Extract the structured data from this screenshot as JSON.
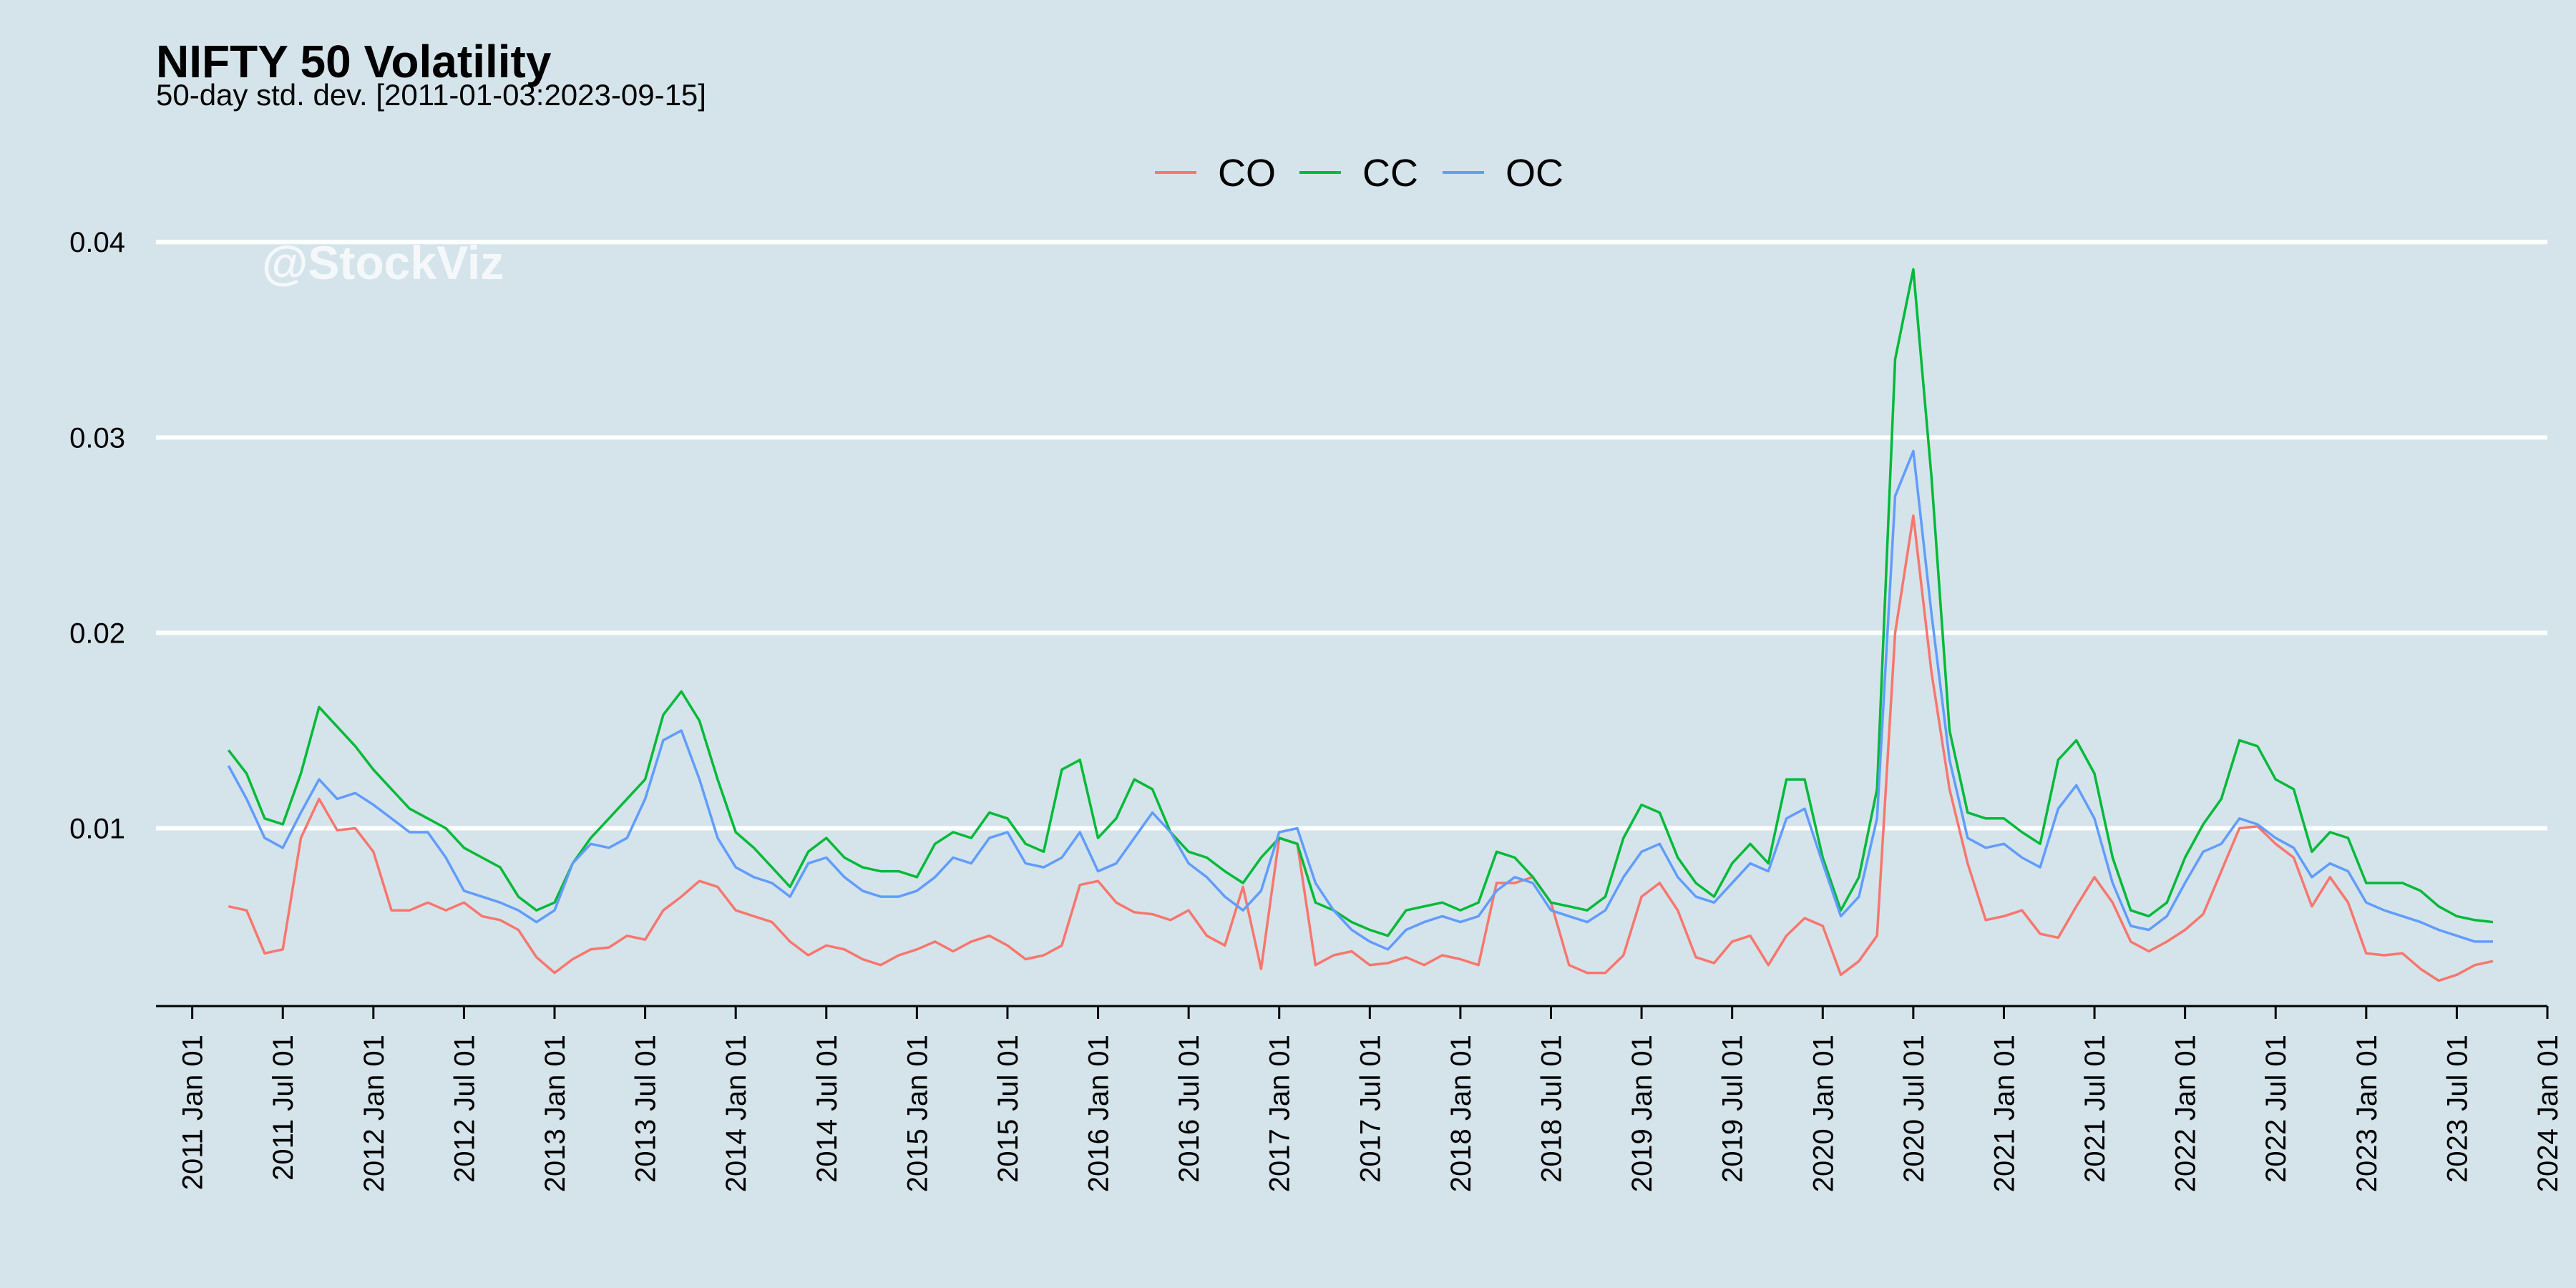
{
  "chart_data": {
    "type": "line",
    "title": "NIFTY 50 Volatility",
    "subtitle": "50-day std. dev. [2011-01-03:2023-09-15]",
    "watermark": "@StockViz",
    "xlabel": "",
    "ylabel": "",
    "xlim": [
      2010.8,
      2024.0
    ],
    "ylim": [
      0.0009,
      0.0414
    ],
    "y_ticks": [
      0.01,
      0.02,
      0.03,
      0.04
    ],
    "y_tick_labels": [
      "0.01",
      "0.02",
      "0.03",
      "0.04"
    ],
    "x_ticks": [
      2011.0,
      2011.5,
      2012.0,
      2012.5,
      2013.0,
      2013.5,
      2014.0,
      2014.5,
      2015.0,
      2015.5,
      2016.0,
      2016.5,
      2017.0,
      2017.5,
      2018.0,
      2018.5,
      2019.0,
      2019.5,
      2020.0,
      2020.5,
      2021.0,
      2021.5,
      2022.0,
      2022.5,
      2023.0,
      2023.5,
      2024.0
    ],
    "x_tick_labels": [
      "2011 Jan 01",
      "2011 Jul 01",
      "2012 Jan 01",
      "2012 Jul 01",
      "2013 Jan 01",
      "2013 Jul 01",
      "2014 Jan 01",
      "2014 Jul 01",
      "2015 Jan 01",
      "2015 Jul 01",
      "2016 Jan 01",
      "2016 Jul 01",
      "2017 Jan 01",
      "2017 Jul 01",
      "2018 Jan 01",
      "2018 Jul 01",
      "2019 Jan 01",
      "2019 Jul 01",
      "2020 Jan 01",
      "2020 Jul 01",
      "2021 Jan 01",
      "2021 Jul 01",
      "2022 Jan 01",
      "2022 Jul 01",
      "2023 Jan 01",
      "2023 Jul 01",
      "2024 Jan 01"
    ],
    "grid": "horizontal",
    "legend_position": "top",
    "series": [
      {
        "name": "CO",
        "color": "#f8766d",
        "x": [
          2011.2,
          2011.3,
          2011.4,
          2011.5,
          2011.6,
          2011.7,
          2011.8,
          2011.9,
          2012.0,
          2012.1,
          2012.2,
          2012.3,
          2012.4,
          2012.5,
          2012.6,
          2012.7,
          2012.8,
          2012.9,
          2013.0,
          2013.1,
          2013.2,
          2013.3,
          2013.4,
          2013.5,
          2013.6,
          2013.7,
          2013.8,
          2013.9,
          2014.0,
          2014.1,
          2014.2,
          2014.3,
          2014.4,
          2014.5,
          2014.6,
          2014.7,
          2014.8,
          2014.9,
          2015.0,
          2015.1,
          2015.2,
          2015.3,
          2015.4,
          2015.5,
          2015.6,
          2015.7,
          2015.8,
          2015.9,
          2016.0,
          2016.1,
          2016.2,
          2016.3,
          2016.4,
          2016.5,
          2016.6,
          2016.7,
          2016.8,
          2016.9,
          2017.0,
          2017.1,
          2017.2,
          2017.3,
          2017.4,
          2017.5,
          2017.6,
          2017.7,
          2017.8,
          2017.9,
          2018.0,
          2018.1,
          2018.2,
          2018.3,
          2018.4,
          2018.5,
          2018.6,
          2018.7,
          2018.8,
          2018.9,
          2019.0,
          2019.1,
          2019.2,
          2019.3,
          2019.4,
          2019.5,
          2019.6,
          2019.7,
          2019.8,
          2019.9,
          2020.0,
          2020.1,
          2020.2,
          2020.3,
          2020.4,
          2020.5,
          2020.6,
          2020.7,
          2020.8,
          2020.9,
          2021.0,
          2021.1,
          2021.2,
          2021.3,
          2021.4,
          2021.5,
          2021.6,
          2021.7,
          2021.8,
          2021.9,
          2022.0,
          2022.1,
          2022.2,
          2022.3,
          2022.4,
          2022.5,
          2022.6,
          2022.7,
          2022.8,
          2022.9,
          2023.0,
          2023.1,
          2023.2,
          2023.3,
          2023.4,
          2023.5,
          2023.6,
          2023.7
        ],
        "values": [
          0.006,
          0.0058,
          0.0036,
          0.0038,
          0.0095,
          0.0115,
          0.0099,
          0.01,
          0.0088,
          0.0058,
          0.0058,
          0.0062,
          0.0058,
          0.0062,
          0.0055,
          0.0053,
          0.0048,
          0.0034,
          0.0026,
          0.0033,
          0.0038,
          0.0039,
          0.0045,
          0.0043,
          0.0058,
          0.0065,
          0.0073,
          0.007,
          0.0058,
          0.0055,
          0.0052,
          0.0042,
          0.0035,
          0.004,
          0.0038,
          0.0033,
          0.003,
          0.0035,
          0.0038,
          0.0042,
          0.0037,
          0.0042,
          0.0045,
          0.004,
          0.0033,
          0.0035,
          0.004,
          0.0071,
          0.0073,
          0.0062,
          0.0057,
          0.0056,
          0.0053,
          0.0058,
          0.0045,
          0.004,
          0.007,
          0.0028,
          0.0095,
          0.0092,
          0.003,
          0.0035,
          0.0037,
          0.003,
          0.0031,
          0.0034,
          0.003,
          0.0035,
          0.0033,
          0.003,
          0.0072,
          0.0072,
          0.0075,
          0.0062,
          0.003,
          0.0026,
          0.0026,
          0.0035,
          0.0065,
          0.0072,
          0.0058,
          0.0034,
          0.0031,
          0.0042,
          0.0045,
          0.003,
          0.0045,
          0.0054,
          0.005,
          0.0025,
          0.0032,
          0.0045,
          0.02,
          0.026,
          0.018,
          0.012,
          0.0082,
          0.0053,
          0.0055,
          0.0058,
          0.0046,
          0.0044,
          0.006,
          0.0075,
          0.0062,
          0.0042,
          0.0037,
          0.0042,
          0.0048,
          0.0056,
          0.0078,
          0.01,
          0.0101,
          0.0092,
          0.0085,
          0.006,
          0.0075,
          0.0062,
          0.0036,
          0.0035,
          0.0036,
          0.0028,
          0.0022,
          0.0025,
          0.003,
          0.0032
        ]
      },
      {
        "name": "CC",
        "color": "#00ba38",
        "x": [
          2011.2,
          2011.3,
          2011.4,
          2011.5,
          2011.6,
          2011.7,
          2011.8,
          2011.9,
          2012.0,
          2012.1,
          2012.2,
          2012.3,
          2012.4,
          2012.5,
          2012.6,
          2012.7,
          2012.8,
          2012.9,
          2013.0,
          2013.1,
          2013.2,
          2013.3,
          2013.4,
          2013.5,
          2013.6,
          2013.7,
          2013.8,
          2013.9,
          2014.0,
          2014.1,
          2014.2,
          2014.3,
          2014.4,
          2014.5,
          2014.6,
          2014.7,
          2014.8,
          2014.9,
          2015.0,
          2015.1,
          2015.2,
          2015.3,
          2015.4,
          2015.5,
          2015.6,
          2015.7,
          2015.8,
          2015.9,
          2016.0,
          2016.1,
          2016.2,
          2016.3,
          2016.4,
          2016.5,
          2016.6,
          2016.7,
          2016.8,
          2016.9,
          2017.0,
          2017.1,
          2017.2,
          2017.3,
          2017.4,
          2017.5,
          2017.6,
          2017.7,
          2017.8,
          2017.9,
          2018.0,
          2018.1,
          2018.2,
          2018.3,
          2018.4,
          2018.5,
          2018.6,
          2018.7,
          2018.8,
          2018.9,
          2019.0,
          2019.1,
          2019.2,
          2019.3,
          2019.4,
          2019.5,
          2019.6,
          2019.7,
          2019.8,
          2019.9,
          2020.0,
          2020.1,
          2020.2,
          2020.3,
          2020.4,
          2020.5,
          2020.6,
          2020.7,
          2020.8,
          2020.9,
          2021.0,
          2021.1,
          2021.2,
          2021.3,
          2021.4,
          2021.5,
          2021.6,
          2021.7,
          2021.8,
          2021.9,
          2022.0,
          2022.1,
          2022.2,
          2022.3,
          2022.4,
          2022.5,
          2022.6,
          2022.7,
          2022.8,
          2022.9,
          2023.0,
          2023.1,
          2023.2,
          2023.3,
          2023.4,
          2023.5,
          2023.6,
          2023.7
        ],
        "values": [
          0.014,
          0.0128,
          0.0105,
          0.0102,
          0.0128,
          0.0162,
          0.0152,
          0.0142,
          0.013,
          0.012,
          0.011,
          0.0105,
          0.01,
          0.009,
          0.0085,
          0.008,
          0.0065,
          0.0058,
          0.0062,
          0.0082,
          0.0095,
          0.0105,
          0.0115,
          0.0125,
          0.0158,
          0.017,
          0.0155,
          0.0125,
          0.0098,
          0.009,
          0.008,
          0.007,
          0.0088,
          0.0095,
          0.0085,
          0.008,
          0.0078,
          0.0078,
          0.0075,
          0.0092,
          0.0098,
          0.0095,
          0.0108,
          0.0105,
          0.0092,
          0.0088,
          0.013,
          0.0135,
          0.0095,
          0.0105,
          0.0125,
          0.012,
          0.0098,
          0.0088,
          0.0085,
          0.0078,
          0.0072,
          0.0085,
          0.0095,
          0.0092,
          0.0062,
          0.0058,
          0.0052,
          0.0048,
          0.0045,
          0.0058,
          0.006,
          0.0062,
          0.0058,
          0.0062,
          0.0088,
          0.0085,
          0.0075,
          0.0062,
          0.006,
          0.0058,
          0.0065,
          0.0095,
          0.0112,
          0.0108,
          0.0085,
          0.0072,
          0.0065,
          0.0082,
          0.0092,
          0.0082,
          0.0125,
          0.0125,
          0.0085,
          0.0058,
          0.0075,
          0.012,
          0.034,
          0.0386,
          0.028,
          0.015,
          0.0108,
          0.0105,
          0.0105,
          0.0098,
          0.0092,
          0.0135,
          0.0145,
          0.0128,
          0.0085,
          0.0058,
          0.0055,
          0.0062,
          0.0085,
          0.0102,
          0.0115,
          0.0145,
          0.0142,
          0.0125,
          0.012,
          0.0088,
          0.0098,
          0.0095,
          0.0072,
          0.0072,
          0.0072,
          0.0068,
          0.006,
          0.0055,
          0.0053,
          0.0052
        ]
      },
      {
        "name": "OC",
        "color": "#619cff",
        "x": [
          2011.2,
          2011.3,
          2011.4,
          2011.5,
          2011.6,
          2011.7,
          2011.8,
          2011.9,
          2012.0,
          2012.1,
          2012.2,
          2012.3,
          2012.4,
          2012.5,
          2012.6,
          2012.7,
          2012.8,
          2012.9,
          2013.0,
          2013.1,
          2013.2,
          2013.3,
          2013.4,
          2013.5,
          2013.6,
          2013.7,
          2013.8,
          2013.9,
          2014.0,
          2014.1,
          2014.2,
          2014.3,
          2014.4,
          2014.5,
          2014.6,
          2014.7,
          2014.8,
          2014.9,
          2015.0,
          2015.1,
          2015.2,
          2015.3,
          2015.4,
          2015.5,
          2015.6,
          2015.7,
          2015.8,
          2015.9,
          2016.0,
          2016.1,
          2016.2,
          2016.3,
          2016.4,
          2016.5,
          2016.6,
          2016.7,
          2016.8,
          2016.9,
          2017.0,
          2017.1,
          2017.2,
          2017.3,
          2017.4,
          2017.5,
          2017.6,
          2017.7,
          2017.8,
          2017.9,
          2018.0,
          2018.1,
          2018.2,
          2018.3,
          2018.4,
          2018.5,
          2018.6,
          2018.7,
          2018.8,
          2018.9,
          2019.0,
          2019.1,
          2019.2,
          2019.3,
          2019.4,
          2019.5,
          2019.6,
          2019.7,
          2019.8,
          2019.9,
          2020.0,
          2020.1,
          2020.2,
          2020.3,
          2020.4,
          2020.5,
          2020.6,
          2020.7,
          2020.8,
          2020.9,
          2021.0,
          2021.1,
          2021.2,
          2021.3,
          2021.4,
          2021.5,
          2021.6,
          2021.7,
          2021.8,
          2021.9,
          2022.0,
          2022.1,
          2022.2,
          2022.3,
          2022.4,
          2022.5,
          2022.6,
          2022.7,
          2022.8,
          2022.9,
          2023.0,
          2023.1,
          2023.2,
          2023.3,
          2023.4,
          2023.5,
          2023.6,
          2023.7
        ],
        "values": [
          0.0132,
          0.0115,
          0.0095,
          0.009,
          0.0108,
          0.0125,
          0.0115,
          0.0118,
          0.0112,
          0.0105,
          0.0098,
          0.0098,
          0.0085,
          0.0068,
          0.0065,
          0.0062,
          0.0058,
          0.0052,
          0.0058,
          0.0082,
          0.0092,
          0.009,
          0.0095,
          0.0115,
          0.0145,
          0.015,
          0.0125,
          0.0095,
          0.008,
          0.0075,
          0.0072,
          0.0065,
          0.0082,
          0.0085,
          0.0075,
          0.0068,
          0.0065,
          0.0065,
          0.0068,
          0.0075,
          0.0085,
          0.0082,
          0.0095,
          0.0098,
          0.0082,
          0.008,
          0.0085,
          0.0098,
          0.0078,
          0.0082,
          0.0095,
          0.0108,
          0.0098,
          0.0082,
          0.0075,
          0.0065,
          0.0058,
          0.0068,
          0.0098,
          0.01,
          0.0072,
          0.0058,
          0.0048,
          0.0042,
          0.0038,
          0.0048,
          0.0052,
          0.0055,
          0.0052,
          0.0055,
          0.0068,
          0.0075,
          0.0072,
          0.0058,
          0.0055,
          0.0052,
          0.0058,
          0.0075,
          0.0088,
          0.0092,
          0.0075,
          0.0065,
          0.0062,
          0.0072,
          0.0082,
          0.0078,
          0.0105,
          0.011,
          0.0082,
          0.0055,
          0.0065,
          0.0105,
          0.027,
          0.0293,
          0.021,
          0.0135,
          0.0095,
          0.009,
          0.0092,
          0.0085,
          0.008,
          0.011,
          0.0122,
          0.0105,
          0.0072,
          0.005,
          0.0048,
          0.0055,
          0.0072,
          0.0088,
          0.0092,
          0.0105,
          0.0102,
          0.0095,
          0.009,
          0.0075,
          0.0082,
          0.0078,
          0.0062,
          0.0058,
          0.0055,
          0.0052,
          0.0048,
          0.0045,
          0.0042,
          0.0042
        ]
      }
    ]
  }
}
